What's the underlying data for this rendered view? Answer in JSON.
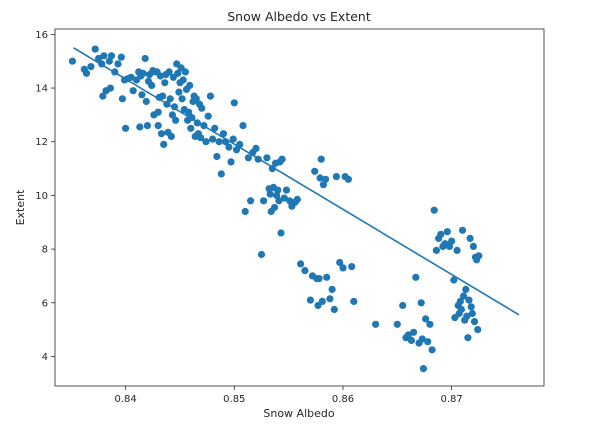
{
  "chart_data": {
    "type": "scatter",
    "title": "Snow Albedo vs Extent",
    "xlabel": "Snow Albedo",
    "ylabel": "Extent",
    "xlim": [
      0.8335,
      0.8785
    ],
    "ylim": [
      2.9,
      16.2
    ],
    "xticks": [
      0.84,
      0.85,
      0.86,
      0.87
    ],
    "xtick_labels": [
      "0.84",
      "0.85",
      "0.86",
      "0.87"
    ],
    "yticks": [
      4,
      6,
      8,
      10,
      12,
      14,
      16
    ],
    "ytick_labels": [
      "4",
      "6",
      "8",
      "10",
      "12",
      "14",
      "16"
    ],
    "grid": false,
    "color": "#1f77b4",
    "points": [
      [
        0.8351,
        15.0
      ],
      [
        0.8362,
        14.7
      ],
      [
        0.8364,
        14.55
      ],
      [
        0.8368,
        14.8
      ],
      [
        0.8372,
        15.45
      ],
      [
        0.8375,
        15.1
      ],
      [
        0.8378,
        14.9
      ],
      [
        0.8379,
        13.7
      ],
      [
        0.838,
        15.2
      ],
      [
        0.8382,
        13.9
      ],
      [
        0.8385,
        15.0
      ],
      [
        0.8386,
        14.0
      ],
      [
        0.8387,
        15.2
      ],
      [
        0.839,
        14.6
      ],
      [
        0.8393,
        14.9
      ],
      [
        0.8396,
        15.15
      ],
      [
        0.8397,
        13.6
      ],
      [
        0.8399,
        14.3
      ],
      [
        0.84,
        12.5
      ],
      [
        0.8402,
        14.35
      ],
      [
        0.8405,
        14.4
      ],
      [
        0.8407,
        13.9
      ],
      [
        0.841,
        14.3
      ],
      [
        0.8412,
        14.6
      ],
      [
        0.8413,
        12.55
      ],
      [
        0.8414,
        14.45
      ],
      [
        0.8415,
        13.75
      ],
      [
        0.8416,
        14.55
      ],
      [
        0.8418,
        15.1
      ],
      [
        0.8419,
        13.5
      ],
      [
        0.842,
        12.6
      ],
      [
        0.8421,
        14.25
      ],
      [
        0.8422,
        14.5
      ],
      [
        0.8424,
        14.1
      ],
      [
        0.8425,
        14.65
      ],
      [
        0.8426,
        13.0
      ],
      [
        0.8427,
        14.6
      ],
      [
        0.8429,
        14.6
      ],
      [
        0.843,
        12.6
      ],
      [
        0.843,
        13.1
      ],
      [
        0.8431,
        13.65
      ],
      [
        0.8432,
        14.45
      ],
      [
        0.8433,
        12.3
      ],
      [
        0.8434,
        13.7
      ],
      [
        0.8435,
        11.9
      ],
      [
        0.8436,
        14.2
      ],
      [
        0.8437,
        14.5
      ],
      [
        0.8438,
        13.4
      ],
      [
        0.8439,
        12.35
      ],
      [
        0.844,
        14.6
      ],
      [
        0.8441,
        13.6
      ],
      [
        0.8442,
        12.2
      ],
      [
        0.8443,
        13.0
      ],
      [
        0.8444,
        14.4
      ],
      [
        0.8445,
        13.3
      ],
      [
        0.8446,
        12.8
      ],
      [
        0.8447,
        14.9
      ],
      [
        0.8448,
        14.55
      ],
      [
        0.8449,
        13.85
      ],
      [
        0.845,
        14.2
      ],
      [
        0.8451,
        14.75
      ],
      [
        0.8452,
        13.6
      ],
      [
        0.8453,
        14.3
      ],
      [
        0.8454,
        13.2
      ],
      [
        0.8455,
        14.6
      ],
      [
        0.8456,
        13.95
      ],
      [
        0.8457,
        12.8
      ],
      [
        0.8458,
        13.1
      ],
      [
        0.8459,
        14.1
      ],
      [
        0.846,
        12.5
      ],
      [
        0.8461,
        12.9
      ],
      [
        0.8462,
        13.5
      ],
      [
        0.8463,
        13.7
      ],
      [
        0.8464,
        12.2
      ],
      [
        0.8465,
        13.6
      ],
      [
        0.8466,
        12.7
      ],
      [
        0.8467,
        12.3
      ],
      [
        0.8468,
        13.4
      ],
      [
        0.8469,
        12.15
      ],
      [
        0.847,
        13.25
      ],
      [
        0.8472,
        12.6
      ],
      [
        0.8474,
        12.0
      ],
      [
        0.8476,
        12.95
      ],
      [
        0.8478,
        13.7
      ],
      [
        0.848,
        12.1
      ],
      [
        0.8482,
        12.5
      ],
      [
        0.8484,
        11.45
      ],
      [
        0.8486,
        12.0
      ],
      [
        0.8488,
        10.8
      ],
      [
        0.849,
        12.3
      ],
      [
        0.8492,
        12.0
      ],
      [
        0.8495,
        11.8
      ],
      [
        0.8497,
        11.25
      ],
      [
        0.8499,
        12.1
      ],
      [
        0.85,
        13.45
      ],
      [
        0.8502,
        11.7
      ],
      [
        0.8505,
        11.9
      ],
      [
        0.8508,
        12.6
      ],
      [
        0.851,
        9.4
      ],
      [
        0.8513,
        11.4
      ],
      [
        0.8515,
        9.8
      ],
      [
        0.8517,
        11.6
      ],
      [
        0.852,
        11.75
      ],
      [
        0.8522,
        11.35
      ],
      [
        0.8525,
        7.8
      ],
      [
        0.8527,
        9.8
      ],
      [
        0.853,
        11.4
      ],
      [
        0.8532,
        10.25
      ],
      [
        0.8533,
        10.05
      ],
      [
        0.8534,
        9.4
      ],
      [
        0.8535,
        11.0
      ],
      [
        0.8536,
        10.3
      ],
      [
        0.8537,
        9.55
      ],
      [
        0.8538,
        11.2
      ],
      [
        0.8539,
        10.0
      ],
      [
        0.854,
        10.2
      ],
      [
        0.8541,
        9.8
      ],
      [
        0.8542,
        11.25
      ],
      [
        0.8543,
        8.6
      ],
      [
        0.8544,
        11.35
      ],
      [
        0.8546,
        9.9
      ],
      [
        0.8548,
        10.2
      ],
      [
        0.8551,
        9.8
      ],
      [
        0.8553,
        9.6
      ],
      [
        0.8556,
        9.75
      ],
      [
        0.8558,
        9.85
      ],
      [
        0.8561,
        7.45
      ],
      [
        0.8565,
        7.2
      ],
      [
        0.857,
        6.1
      ],
      [
        0.8572,
        7.0
      ],
      [
        0.8574,
        10.9
      ],
      [
        0.8576,
        6.9
      ],
      [
        0.8577,
        5.9
      ],
      [
        0.8578,
        6.9
      ],
      [
        0.8579,
        10.65
      ],
      [
        0.858,
        11.35
      ],
      [
        0.8581,
        6.05
      ],
      [
        0.8582,
        10.4
      ],
      [
        0.8584,
        10.6
      ],
      [
        0.8585,
        6.95
      ],
      [
        0.8588,
        6.15
      ],
      [
        0.859,
        6.5
      ],
      [
        0.8592,
        5.75
      ],
      [
        0.8594,
        10.7
      ],
      [
        0.8597,
        7.5
      ],
      [
        0.86,
        7.3
      ],
      [
        0.8602,
        10.7
      ],
      [
        0.8605,
        10.6
      ],
      [
        0.8608,
        7.35
      ],
      [
        0.861,
        6.05
      ],
      [
        0.863,
        5.2
      ],
      [
        0.865,
        5.2
      ],
      [
        0.8655,
        5.9
      ],
      [
        0.8658,
        4.7
      ],
      [
        0.866,
        4.8
      ],
      [
        0.8663,
        4.6
      ],
      [
        0.8665,
        4.9
      ],
      [
        0.8667,
        6.95
      ],
      [
        0.867,
        4.5
      ],
      [
        0.8672,
        6.0
      ],
      [
        0.8673,
        4.65
      ],
      [
        0.8674,
        3.55
      ],
      [
        0.8676,
        5.4
      ],
      [
        0.8678,
        4.55
      ],
      [
        0.868,
        5.2
      ],
      [
        0.8682,
        4.25
      ],
      [
        0.8684,
        9.45
      ],
      [
        0.8686,
        7.95
      ],
      [
        0.8688,
        8.4
      ],
      [
        0.869,
        8.55
      ],
      [
        0.8692,
        8.1
      ],
      [
        0.8694,
        8.2
      ],
      [
        0.8696,
        8.65
      ],
      [
        0.8698,
        8.1
      ],
      [
        0.87,
        8.3
      ],
      [
        0.8702,
        6.85
      ],
      [
        0.8703,
        5.45
      ],
      [
        0.8705,
        7.95
      ],
      [
        0.8706,
        5.9
      ],
      [
        0.8707,
        5.6
      ],
      [
        0.8708,
        6.05
      ],
      [
        0.8709,
        5.75
      ],
      [
        0.871,
        8.7
      ],
      [
        0.8711,
        6.25
      ],
      [
        0.8712,
        5.35
      ],
      [
        0.8713,
        6.5
      ],
      [
        0.8714,
        5.5
      ],
      [
        0.8715,
        4.7
      ],
      [
        0.8716,
        6.1
      ],
      [
        0.8717,
        8.4
      ],
      [
        0.8718,
        5.85
      ],
      [
        0.8719,
        5.6
      ],
      [
        0.872,
        8.1
      ],
      [
        0.8721,
        5.3
      ],
      [
        0.8722,
        7.7
      ],
      [
        0.8723,
        7.6
      ],
      [
        0.8724,
        5.0
      ],
      [
        0.8725,
        7.75
      ]
    ],
    "trend_line": {
      "x": [
        0.8352,
        0.8762
      ],
      "y": [
        15.5,
        5.55
      ]
    }
  }
}
